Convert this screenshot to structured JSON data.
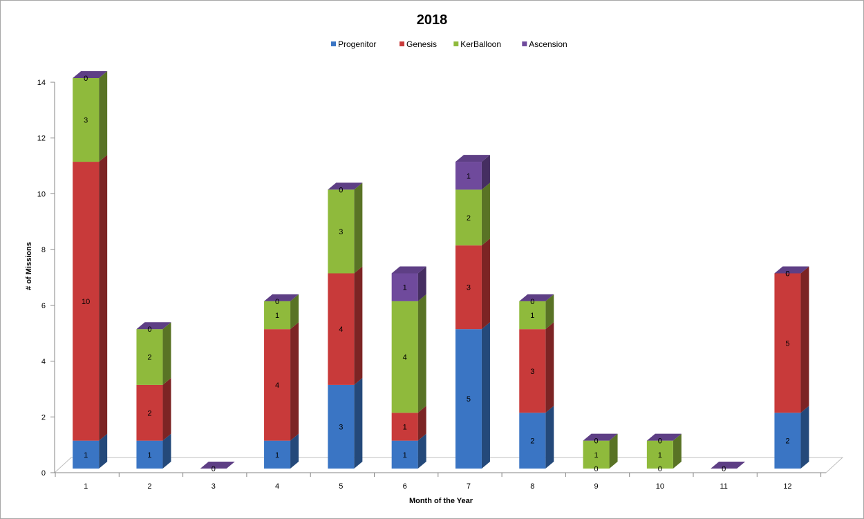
{
  "chart_data": {
    "type": "bar",
    "stacked": true,
    "three_d": true,
    "title": "2018",
    "xlabel": "Month of the Year",
    "ylabel": "# of Missions",
    "ylim": [
      0,
      14
    ],
    "yticks": [
      0,
      2,
      4,
      6,
      8,
      10,
      12,
      14
    ],
    "legend_position": "top",
    "categories": [
      "1",
      "2",
      "3",
      "4",
      "5",
      "6",
      "7",
      "8",
      "9",
      "10",
      "11",
      "12"
    ],
    "series": [
      {
        "name": "Progenitor",
        "color": "#3a75c4",
        "values": [
          1,
          1,
          0,
          1,
          3,
          1,
          5,
          2,
          0,
          0,
          0,
          2
        ]
      },
      {
        "name": "Genesis",
        "color": "#c83a3a",
        "values": [
          10,
          2,
          0,
          4,
          4,
          1,
          3,
          3,
          0,
          0,
          0,
          5
        ]
      },
      {
        "name": "KerBalloon",
        "color": "#8fba3c",
        "values": [
          3,
          2,
          0,
          1,
          3,
          4,
          2,
          1,
          1,
          1,
          0,
          0
        ]
      },
      {
        "name": "Ascension",
        "color": "#6f4a9c",
        "values": [
          0,
          0,
          0,
          0,
          0,
          1,
          1,
          0,
          0,
          0,
          0,
          0
        ]
      }
    ]
  }
}
